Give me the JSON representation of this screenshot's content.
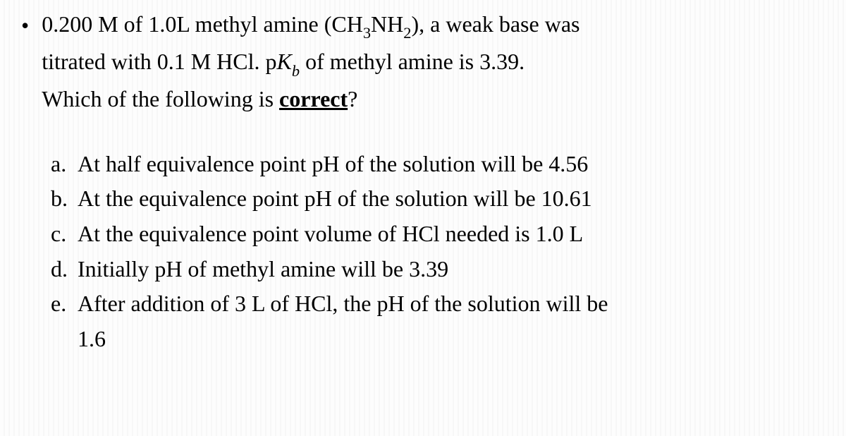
{
  "question": {
    "bullet": "•",
    "line1_a": "0.200 M of 1.0L methyl amine (CH",
    "line1_sub1": "3",
    "line1_b": "NH",
    "line1_sub2": "2",
    "line1_c": "), a weak base was",
    "line2_a": "titrated with 0.1 M HCl. p",
    "line2_kvar": "K",
    "line2_ksub": "b",
    "line2_b": " of methyl amine is 3.39.",
    "line3_a": "Which of the following is ",
    "line3_correct": "correct",
    "line3_b": "?"
  },
  "options": {
    "a": {
      "label": "a.",
      "text": "At half equivalence point pH of the solution will be 4.56"
    },
    "b": {
      "label": "b.",
      "text": "At the equivalence point pH of the solution will be 10.61"
    },
    "c": {
      "label": "c.",
      "text": "At the equivalence point volume of HCl needed is 1.0 L"
    },
    "d": {
      "label": "d.",
      "text": "Initially pH of methyl amine will be 3.39"
    },
    "e": {
      "label": "e.",
      "text1": "After addition of 3 L of HCl, the pH of the solution will be",
      "text2": "1.6"
    }
  },
  "styling": {
    "font_family": "Times New Roman",
    "font_size_pt": 24,
    "text_color": "#000000",
    "background_stripe_light": "#fdfdfd",
    "background_stripe_dark": "#f7f7f7"
  }
}
